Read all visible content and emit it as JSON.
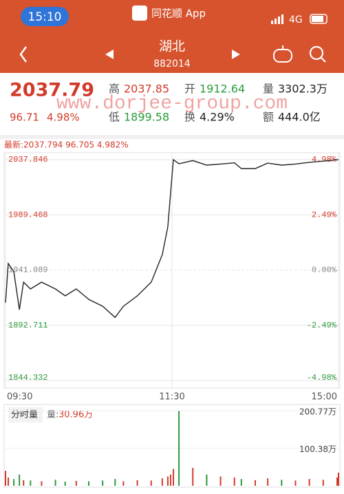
{
  "status_bar": {
    "time": "15:10",
    "app": "同花顺 App",
    "network": "4G"
  },
  "nav": {
    "title": "湖北",
    "code": "882014"
  },
  "quote": {
    "price": "2037.79",
    "change": "96.71",
    "change_pct": "4.98%",
    "stats": [
      {
        "label": "高",
        "value": "2037.85"
      },
      {
        "label": "开",
        "value": "1912.64"
      },
      {
        "label": "量",
        "value": "3302.3万"
      },
      {
        "label": "低",
        "value": "1899.58"
      },
      {
        "label": "换",
        "value": "4.29%"
      },
      {
        "label": "额",
        "value": "444.0亿"
      }
    ]
  },
  "watermark": "www.dorjee-group.com",
  "chart_data": {
    "type": "line",
    "latest": "最新:2037.794 96.705 4.982%",
    "x": [
      0,
      2,
      6,
      10,
      13,
      18,
      26,
      36,
      43,
      51,
      60,
      70,
      79,
      85,
      95,
      105,
      113,
      117,
      119,
      121,
      125,
      135,
      145,
      155,
      165,
      170,
      180,
      189,
      199,
      209,
      219,
      229,
      239,
      240
    ],
    "values": [
      1912.6,
      1946.8,
      1939.6,
      1906.4,
      1930.5,
      1924.5,
      1930.5,
      1924.5,
      1918.5,
      1924.5,
      1915.4,
      1909.4,
      1899.6,
      1909.4,
      1918.5,
      1930.5,
      1954.6,
      1978.8,
      2008.9,
      2037.8,
      2034.2,
      2037.0,
      2033.0,
      2034.0,
      2035.0,
      2030.0,
      2030.0,
      2034.8,
      2033.0,
      2034.0,
      2035.5,
      2036.5,
      2037.79,
      2037.794
    ],
    "color": "#222222",
    "up_color": "#d23a2a",
    "down_color": "#2a9a3a",
    "xlim": [
      0,
      240
    ],
    "xticks": [
      {
        "value": 0,
        "label": "09:30"
      },
      {
        "value": 120,
        "label": "11:30"
      },
      {
        "value": 240,
        "label": "15:00"
      }
    ],
    "ylim": [
      1844.332,
      2037.846
    ],
    "yticks": [
      2037.846,
      1989.468,
      1941.089,
      1892.711,
      1844.332
    ],
    "y2lim": [
      -4.98,
      4.98
    ],
    "y2ticks": [
      {
        "value": 4.98,
        "label": "4.98%"
      },
      {
        "value": 2.49,
        "label": "2.49%"
      },
      {
        "value": 0,
        "label": "0.00%"
      },
      {
        "value": -2.49,
        "label": "-2.49%"
      },
      {
        "value": -4.98,
        "label": "-4.98%"
      }
    ],
    "grid": true
  },
  "volume": {
    "title": "分时量",
    "label": "量:",
    "value": "30.96万",
    "values": [
      40,
      22,
      18,
      30,
      15,
      14,
      12,
      16,
      11,
      13,
      12,
      14,
      18,
      12,
      15,
      14,
      20,
      25,
      30,
      45,
      200,
      48,
      30,
      25,
      22,
      18,
      15,
      20,
      16,
      14,
      18,
      16,
      22,
      35
    ],
    "ylim": [
      0,
      200.77
    ],
    "yticks": [
      {
        "value": 200.77,
        "label": "200.77万"
      },
      {
        "value": 100.38,
        "label": "100.38万"
      }
    ]
  }
}
